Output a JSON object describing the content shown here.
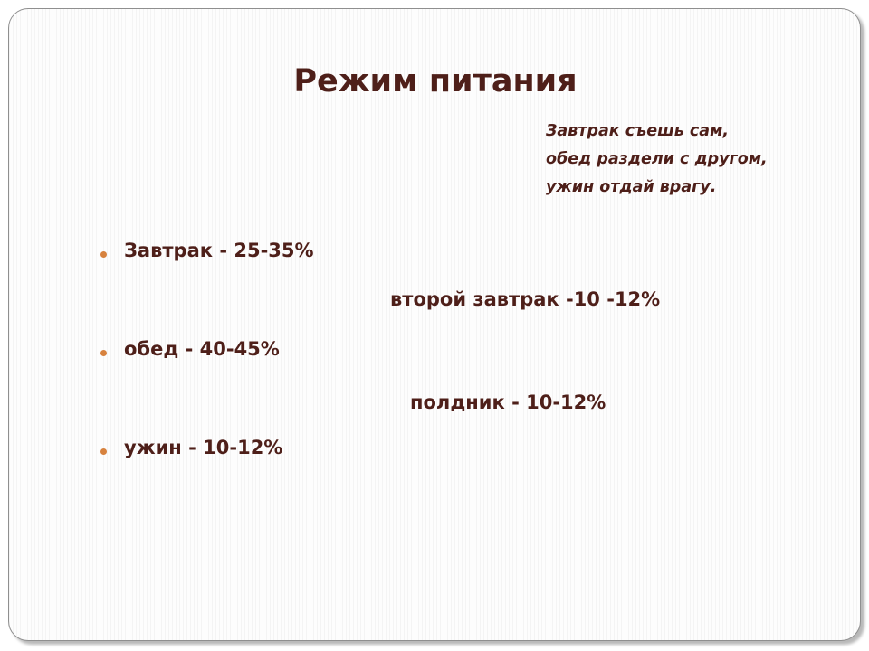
{
  "slide": {
    "title": "Режим питания",
    "quote": [
      "Завтрак съешь сам,",
      "обед раздели с другом,",
      "ужин отдай врагу."
    ],
    "bullets": [
      "Завтрак - 25-35%",
      "обед - 40-45%",
      "ужин - 10-12%"
    ],
    "extras": [
      "второй завтрак -10 -12%",
      "полдник - 10-12%"
    ]
  },
  "colors": {
    "text": "#4e1f19",
    "bullet": "#d7823e",
    "border": "#8f8f8f"
  }
}
